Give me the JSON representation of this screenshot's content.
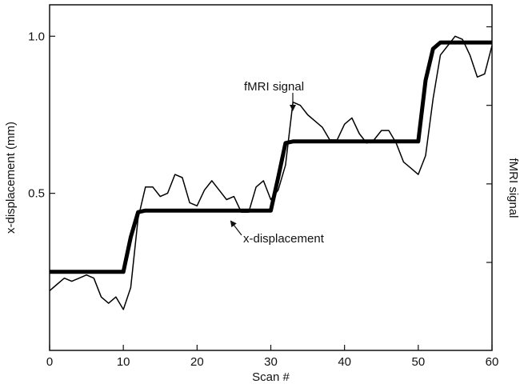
{
  "chart_data": {
    "type": "line",
    "title": "",
    "xlabel": "Scan #",
    "ylabel": "x-displacement (mm)",
    "ylabel_right": "fMRI signal",
    "xlim": [
      0,
      60
    ],
    "ylim": [
      0.0,
      1.1
    ],
    "x_ticks": [
      0,
      10,
      20,
      30,
      40,
      50,
      60
    ],
    "x_tick_labels": [
      "0",
      "10",
      "20",
      "30",
      "40",
      "50",
      "60"
    ],
    "y_ticks": [
      0.5,
      1.0
    ],
    "y_tick_labels": [
      "0.5",
      "1.0"
    ],
    "right_y_ticks": [
      0.28,
      0.53,
      0.78,
      1.03
    ],
    "grid": false,
    "series": [
      {
        "name": "x-displacement",
        "color": "#000000",
        "x": [
          0,
          10,
          11,
          12,
          13,
          30,
          31,
          32,
          33,
          50,
          51,
          52,
          53,
          60
        ],
        "y": [
          0.25,
          0.25,
          0.36,
          0.44,
          0.445,
          0.445,
          0.55,
          0.66,
          0.665,
          0.665,
          0.86,
          0.96,
          0.98,
          0.98
        ]
      },
      {
        "name": "fMRI signal",
        "color": "#000000",
        "x": [
          0,
          1,
          2,
          3,
          4,
          5,
          6,
          7,
          8,
          9,
          10,
          11,
          12,
          13,
          14,
          15,
          16,
          17,
          18,
          19,
          20,
          21,
          22,
          23,
          24,
          25,
          26,
          27,
          28,
          29,
          30,
          31,
          32,
          33,
          34,
          35,
          36,
          37,
          38,
          39,
          40,
          41,
          42,
          43,
          44,
          45,
          46,
          47,
          48,
          49,
          50,
          51,
          52,
          53,
          54,
          55,
          56,
          57,
          58,
          59,
          60
        ],
        "y": [
          0.19,
          0.21,
          0.23,
          0.22,
          0.23,
          0.24,
          0.23,
          0.17,
          0.15,
          0.17,
          0.13,
          0.2,
          0.42,
          0.52,
          0.52,
          0.49,
          0.5,
          0.56,
          0.55,
          0.47,
          0.46,
          0.51,
          0.54,
          0.51,
          0.48,
          0.49,
          0.44,
          0.44,
          0.52,
          0.54,
          0.48,
          0.51,
          0.59,
          0.79,
          0.78,
          0.75,
          0.73,
          0.71,
          0.67,
          0.67,
          0.72,
          0.74,
          0.69,
          0.66,
          0.67,
          0.7,
          0.7,
          0.66,
          0.6,
          0.58,
          0.56,
          0.62,
          0.8,
          0.94,
          0.97,
          1.0,
          0.99,
          0.94,
          0.87,
          0.88,
          0.97
        ]
      }
    ],
    "annotations": [
      {
        "text": "fMRI signal",
        "points_to": {
          "x": 33,
          "y": 0.79
        }
      },
      {
        "text": "x-displacement",
        "points_to": {
          "x": 25.5,
          "y": 0.445
        }
      }
    ]
  }
}
